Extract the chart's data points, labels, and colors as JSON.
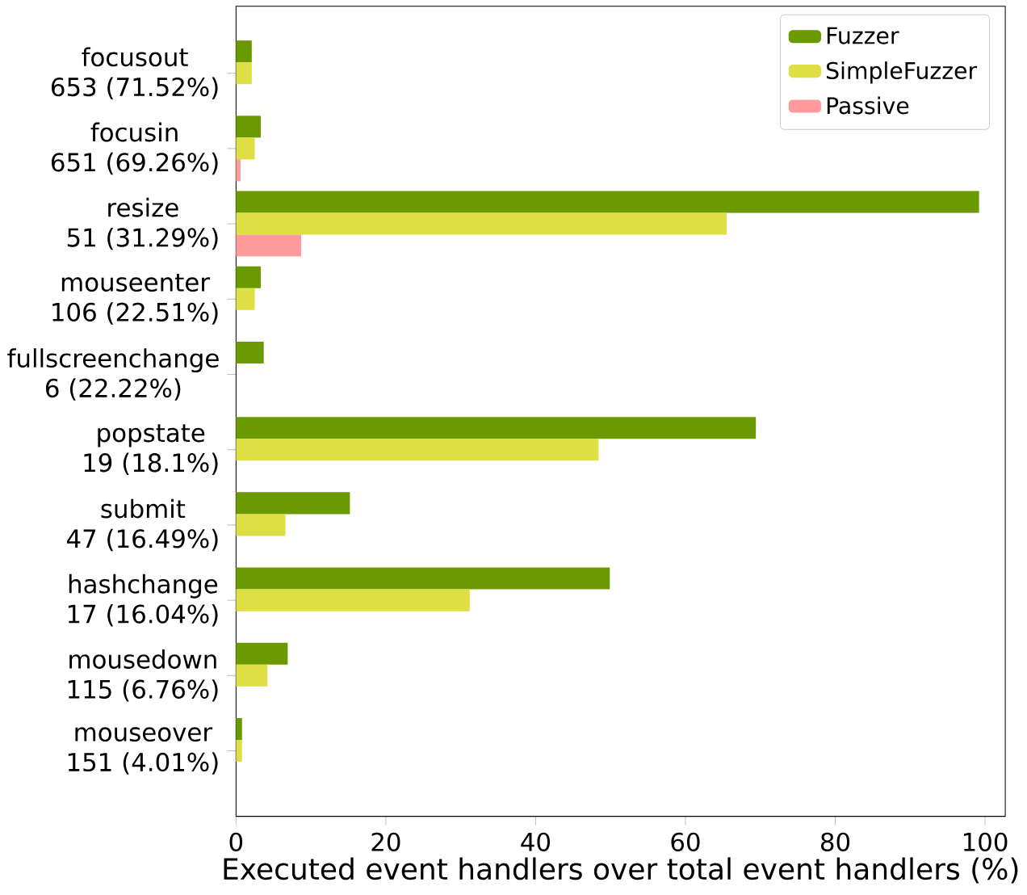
{
  "chart_data": {
    "type": "bar",
    "orientation": "horizontal",
    "xlabel": "Executed event handlers over total event handlers (%)",
    "categories": [
      "focusout\n653 (71.52%)",
      "focusin\n651 (69.26%)",
      "resize\n51 (31.29%)",
      "mouseenter\n106 (22.51%)",
      "fullscreenchange\n6 (22.22%)",
      "popstate\n19 (18.1%)",
      "submit\n47 (16.49%)",
      "hashchange\n17 (16.04%)",
      "mousedown\n115 (6.76%)",
      "mouseover\n151 (4.01%)"
    ],
    "series": [
      {
        "name": "Fuzzer",
        "color": "#6b9900",
        "values": [
          2.1,
          3.3,
          99.2,
          3.3,
          3.7,
          69.4,
          15.2,
          49.9,
          6.9,
          0.8
        ]
      },
      {
        "name": "SimpleFuzzer",
        "color": "#dedf45",
        "values": [
          2.1,
          2.5,
          65.5,
          2.5,
          0,
          48.4,
          6.6,
          31.2,
          4.2,
          0.8
        ]
      },
      {
        "name": "Passive",
        "color": "#ff9b9b",
        "values": [
          0,
          0.6,
          8.7,
          0,
          0,
          0,
          0,
          0,
          0,
          0
        ]
      }
    ],
    "xlim": [
      0,
      102.7
    ],
    "xticks": [
      0,
      20,
      40,
      60,
      80,
      100
    ],
    "legend": "top right"
  }
}
